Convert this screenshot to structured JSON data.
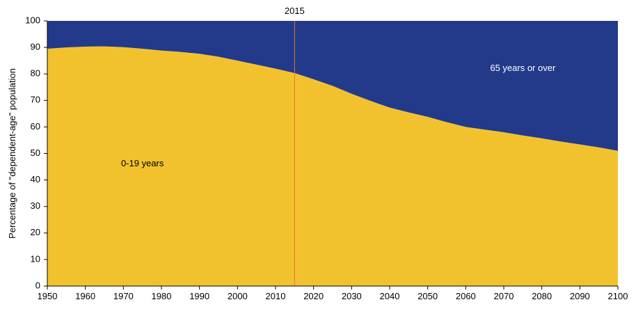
{
  "chart_data": {
    "type": "area",
    "title": "",
    "xlabel": "",
    "ylabel": "Percentage of \"dependent-age\" population",
    "xlim": [
      1950,
      2100
    ],
    "ylim": [
      0,
      100
    ],
    "x_ticks": [
      1950,
      1960,
      1970,
      1980,
      1990,
      2000,
      2010,
      2020,
      2030,
      2040,
      2050,
      2060,
      2070,
      2080,
      2090,
      2100
    ],
    "y_ticks": [
      0,
      10,
      20,
      30,
      40,
      50,
      60,
      70,
      80,
      90,
      100
    ],
    "stacked": true,
    "grid": false,
    "legend": "none",
    "x": [
      1950,
      1955,
      1960,
      1965,
      1970,
      1975,
      1980,
      1985,
      1990,
      1995,
      2000,
      2005,
      2010,
      2015,
      2020,
      2025,
      2030,
      2035,
      2040,
      2045,
      2050,
      2055,
      2060,
      2065,
      2070,
      2075,
      2080,
      2085,
      2090,
      2095,
      2100
    ],
    "series": [
      {
        "name": "0-19 years",
        "color": "#f2c22e",
        "values": [
          89.5,
          90.0,
          90.3,
          90.4,
          90.1,
          89.5,
          88.8,
          88.3,
          87.6,
          86.5,
          85.0,
          83.5,
          82.0,
          80.3,
          78.0,
          75.5,
          72.5,
          69.8,
          67.3,
          65.5,
          63.8,
          61.8,
          60.0,
          59.0,
          58.0,
          56.8,
          55.7,
          54.5,
          53.4,
          52.3,
          51.0
        ]
      },
      {
        "name": "65 years or over",
        "color": "#233a8b",
        "values": [
          10.5,
          10.0,
          9.7,
          9.6,
          9.9,
          10.5,
          11.2,
          11.7,
          12.4,
          13.5,
          15.0,
          16.5,
          18.0,
          19.7,
          22.0,
          24.5,
          27.5,
          30.2,
          32.7,
          34.5,
          36.2,
          38.2,
          40.0,
          41.0,
          42.0,
          43.2,
          44.3,
          45.5,
          46.6,
          47.7,
          49.0
        ]
      }
    ],
    "annotations": [
      {
        "type": "vline",
        "x": 2015,
        "label": "2015",
        "color": "#e8742d"
      }
    ]
  }
}
